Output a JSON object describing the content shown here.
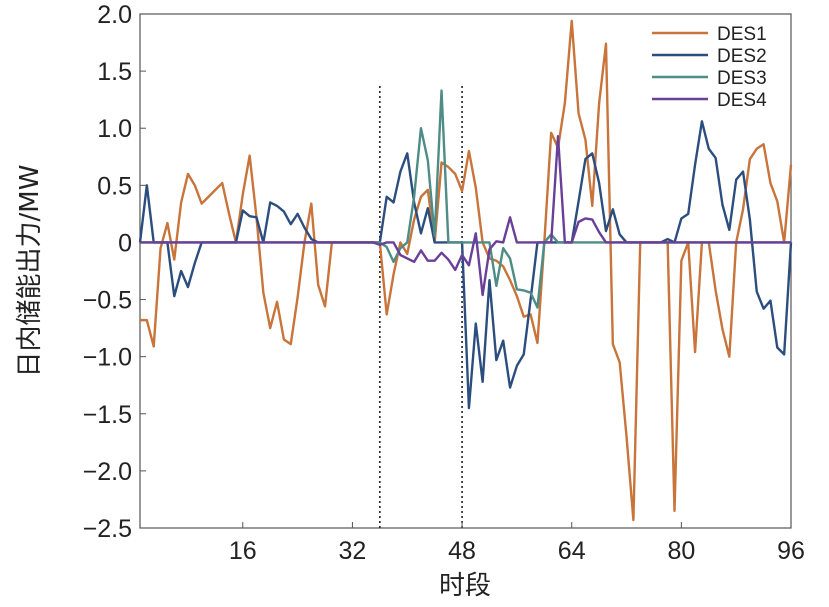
{
  "chart_data": {
    "type": "line",
    "title": "",
    "xlabel": "时段",
    "ylabel": "日内储能出力/MW",
    "xlim": [
      1,
      96
    ],
    "ylim": [
      -2.5,
      2.0
    ],
    "xticks": [
      16,
      32,
      48,
      64,
      80,
      96
    ],
    "yticks": [
      2.0,
      1.5,
      1.0,
      0.5,
      0,
      -0.5,
      -1.0,
      -1.5,
      -2.0,
      -2.5
    ],
    "ytick_labels": [
      "2.0",
      "1.5",
      "1.0",
      "0.5",
      "0",
      "−0.5",
      "−1.0",
      "−1.5",
      "−2.0",
      "−2.5"
    ],
    "grid": false,
    "legend_position": "top-right",
    "vlines": [
      {
        "x": 36,
        "ymin": -2.5,
        "ymax": 1.37,
        "style": "dotted"
      },
      {
        "x": 48,
        "ymin": -2.5,
        "ymax": 1.37,
        "style": "dotted"
      }
    ],
    "series": [
      {
        "name": "DES1",
        "color": "#C8743A",
        "values": [
          -0.68,
          -0.68,
          -0.91,
          -0.05,
          0.17,
          -0.15,
          0.35,
          0.6,
          0.5,
          0.34,
          0.4,
          0.46,
          0.52,
          0.25,
          0,
          0.42,
          0.76,
          0.22,
          -0.44,
          -0.75,
          -0.52,
          -0.85,
          -0.89,
          -0.48,
          0,
          0.34,
          -0.37,
          -0.56,
          0,
          0,
          0,
          0,
          0,
          0,
          0,
          0,
          -0.63,
          -0.28,
          0,
          -0.1,
          0.2,
          0.4,
          0.46,
          0,
          0.7,
          0.66,
          0.6,
          0.45,
          0.8,
          0.48,
          0,
          -0.14,
          -0.16,
          -0.21,
          -0.33,
          -0.47,
          -0.65,
          -0.63,
          -0.88,
          0,
          0.96,
          0.83,
          1.22,
          1.94,
          1.13,
          0.9,
          0.32,
          1.22,
          1.74,
          -0.89,
          -1.05,
          -1.7,
          -2.43,
          0,
          0,
          0,
          0,
          0,
          -2.35,
          -0.16,
          0,
          -0.96,
          0,
          0,
          -0.42,
          -0.76,
          -1.0,
          0,
          0.29,
          0.73,
          0.82,
          0.86,
          0.52,
          0.36,
          0,
          0.68
        ]
      },
      {
        "name": "DES2",
        "color": "#2C4E7E",
        "values": [
          0,
          0.5,
          0,
          0,
          0,
          -0.47,
          -0.25,
          -0.39,
          -0.18,
          0,
          0,
          0,
          0,
          0,
          0,
          0.28,
          0.23,
          0.22,
          0,
          0.35,
          0.32,
          0.27,
          0.16,
          0.25,
          0.13,
          0.03,
          0,
          0,
          0,
          0,
          0,
          0,
          0,
          0,
          0,
          0,
          0.4,
          0.35,
          0.62,
          0.78,
          0.35,
          0.08,
          0.3,
          0,
          0,
          0,
          0,
          0,
          -1.45,
          -0.71,
          -1.22,
          -0.33,
          -1.03,
          -0.86,
          -1.27,
          -1.08,
          -0.98,
          -0.5,
          0,
          0,
          0,
          0,
          0,
          0,
          0.36,
          0.73,
          0.78,
          0.52,
          0.1,
          0.29,
          0.07,
          0,
          0,
          0,
          0,
          0,
          0,
          0.03,
          0,
          0.21,
          0.25,
          0.68,
          1.06,
          0.82,
          0.74,
          0.33,
          0.11,
          0.55,
          0.62,
          0.2,
          -0.43,
          -0.58,
          -0.51,
          -0.92,
          -0.98,
          0
        ]
      },
      {
        "name": "DES3",
        "color": "#4F8C86",
        "values": [
          0,
          0,
          0,
          0,
          0,
          0,
          0,
          0,
          0,
          0,
          0,
          0,
          0,
          0,
          0,
          0,
          0,
          0,
          0,
          0,
          0,
          0,
          0,
          0,
          0,
          0,
          0,
          0,
          0,
          0,
          0,
          0,
          0,
          0,
          0,
          0,
          -0.04,
          -0.17,
          -0.05,
          0,
          0.4,
          1.0,
          0.72,
          0.06,
          1.33,
          0,
          0,
          0,
          0,
          0,
          0,
          0,
          -0.38,
          -0.05,
          -0.14,
          -0.41,
          -0.42,
          -0.44,
          -0.57,
          0,
          0.07,
          0,
          0,
          0,
          0,
          0,
          0,
          0,
          0,
          0,
          0,
          0,
          0,
          0,
          0,
          0,
          0,
          0,
          0,
          0,
          0,
          0,
          0,
          0,
          0,
          0,
          0,
          0,
          0,
          0,
          0,
          0,
          0,
          0,
          0,
          0
        ]
      },
      {
        "name": "DES4",
        "color": "#6A3F98",
        "values": [
          0,
          0,
          0,
          0,
          0,
          0,
          0,
          0,
          0,
          0,
          0,
          0,
          0,
          0,
          0,
          0,
          0,
          0,
          0,
          0,
          0,
          0,
          0,
          0,
          0,
          0,
          0,
          0,
          0,
          0,
          0,
          0,
          0,
          0,
          0,
          -0.02,
          0,
          0,
          -0.11,
          -0.14,
          -0.17,
          -0.07,
          -0.16,
          -0.16,
          -0.09,
          -0.15,
          -0.24,
          -0.11,
          -0.2,
          0.08,
          -0.46,
          -0.06,
          0.01,
          0,
          0.22,
          0,
          0,
          0,
          0,
          0,
          0,
          0.93,
          0,
          0,
          0.18,
          0.21,
          0.2,
          0.09,
          0,
          0,
          0,
          0,
          0,
          0,
          0,
          0,
          0,
          0,
          0,
          0,
          0,
          0,
          0,
          0,
          0,
          0,
          0,
          0,
          0,
          0,
          0,
          0,
          0,
          0,
          0,
          0
        ]
      }
    ]
  }
}
